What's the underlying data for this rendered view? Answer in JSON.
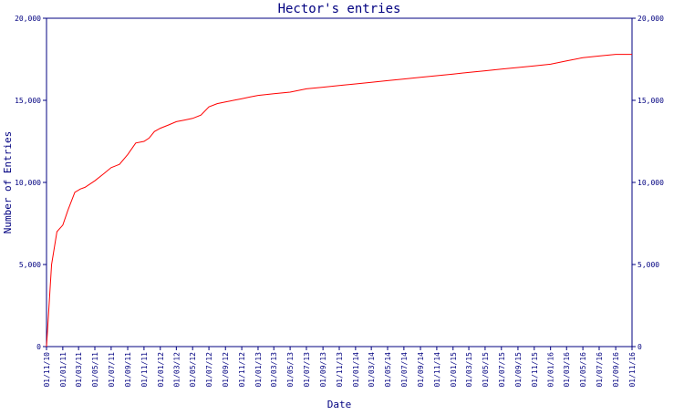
{
  "chart_data": {
    "type": "line",
    "title": "Hector's entries",
    "xlabel": "Date",
    "ylabel": "Number of Entries",
    "ylim": [
      0,
      20000
    ],
    "y_ticks": [
      0,
      5000,
      10000,
      15000,
      20000
    ],
    "y_tick_labels": [
      "0",
      "5,000",
      "10,000",
      "15,000",
      "20,000"
    ],
    "xlim": [
      "2010-11-01",
      "2016-11-01"
    ],
    "x_tick_labels": [
      "01/11/10",
      "01/01/11",
      "01/03/11",
      "01/05/11",
      "01/07/11",
      "01/09/11",
      "01/11/11",
      "01/01/12",
      "01/03/12",
      "01/05/12",
      "01/07/12",
      "01/09/12",
      "01/11/12",
      "01/01/13",
      "01/03/13",
      "01/05/13",
      "01/07/13",
      "01/09/13",
      "01/11/13",
      "01/01/14",
      "01/03/14",
      "01/05/14",
      "01/07/14",
      "01/09/14",
      "01/11/14",
      "01/01/15",
      "01/03/15",
      "01/05/15",
      "01/07/15",
      "01/09/15",
      "01/11/15",
      "01/01/16",
      "01/03/16",
      "01/05/16",
      "01/07/16",
      "01/09/16",
      "01/11/16"
    ],
    "grid": false,
    "colors": {
      "axis": "#000080",
      "line": "#ff0000",
      "text": "#000080"
    },
    "series": [
      {
        "x": [
          "2010-11-01",
          "2010-11-20",
          "2010-12-10",
          "2011-01-01",
          "2011-01-20",
          "2011-02-15",
          "2011-03-08",
          "2011-03-25",
          "2011-05-01",
          "2011-06-01",
          "2011-07-01",
          "2011-08-01",
          "2011-09-01",
          "2011-10-01",
          "2011-11-01",
          "2011-11-20",
          "2011-12-10",
          "2012-01-01",
          "2012-02-01",
          "2012-03-01",
          "2012-04-01",
          "2012-05-01",
          "2012-06-01",
          "2012-07-01",
          "2012-08-01",
          "2012-09-01",
          "2012-10-01",
          "2012-11-01",
          "2012-12-01",
          "2013-01-01",
          "2013-03-01",
          "2013-05-01",
          "2013-07-01",
          "2013-09-01",
          "2013-11-01",
          "2014-01-01",
          "2014-03-01",
          "2014-05-01",
          "2014-07-01",
          "2014-09-01",
          "2014-11-01",
          "2015-01-01",
          "2015-03-01",
          "2015-05-01",
          "2015-07-01",
          "2015-09-01",
          "2015-11-01",
          "2016-01-01",
          "2016-03-01",
          "2016-05-01",
          "2016-07-01",
          "2016-09-01",
          "2016-11-01"
        ],
        "y": [
          0,
          5000,
          7000,
          7400,
          8300,
          9400,
          9600,
          9700,
          10100,
          10500,
          10900,
          11100,
          11700,
          12400,
          12500,
          12700,
          13100,
          13300,
          13500,
          13700,
          13800,
          13900,
          14100,
          14600,
          14800,
          14900,
          15000,
          15100,
          15200,
          15300,
          15400,
          15500,
          15700,
          15800,
          15900,
          16000,
          16100,
          16200,
          16300,
          16400,
          16500,
          16600,
          16700,
          16800,
          16900,
          17000,
          17100,
          17200,
          17400,
          17600,
          17700,
          17800,
          17800
        ]
      }
    ]
  }
}
